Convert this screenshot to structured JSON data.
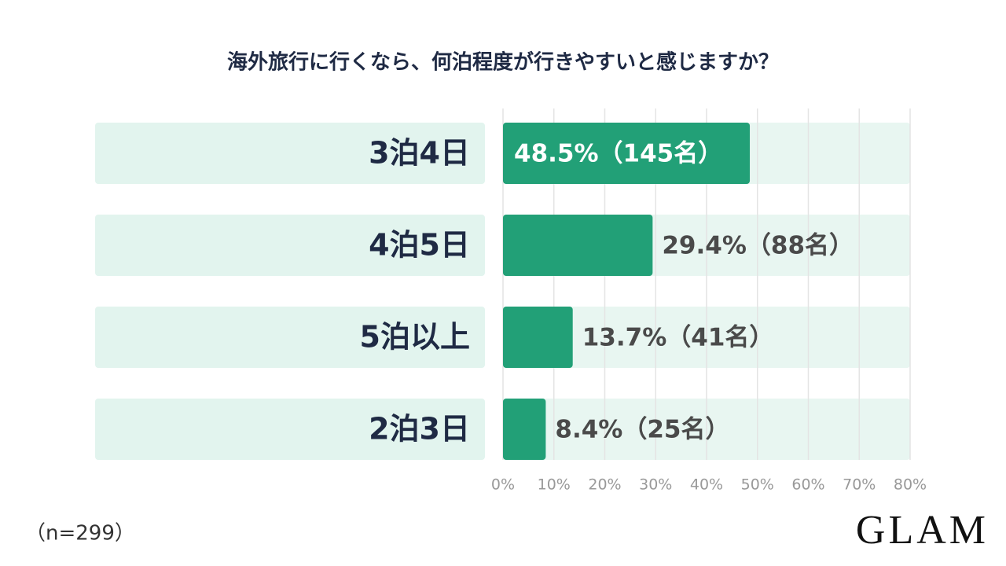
{
  "chart_data": {
    "type": "bar",
    "orientation": "horizontal",
    "title": "海外旅行に行くなら、何泊程度が行きやすいと感じますか？",
    "categories": [
      "3泊4日",
      "4泊5日",
      "5泊以上",
      "2泊3日"
    ],
    "values": [
      48.5,
      29.4,
      13.7,
      8.4
    ],
    "value_labels": [
      "48.5%（145名）",
      "29.4%（88名）",
      "13.7%（41名）",
      "8.4%（25名）"
    ],
    "color": "#22a077",
    "xlim": [
      0,
      80
    ],
    "xticks": [
      {
        "value": 0,
        "label": "0%"
      },
      {
        "value": 10,
        "label": "10%"
      },
      {
        "value": 20,
        "label": "20%"
      },
      {
        "value": 30,
        "label": "30%"
      },
      {
        "value": 40,
        "label": "40%"
      },
      {
        "value": 50,
        "label": "50%"
      },
      {
        "value": 60,
        "label": "60%"
      },
      {
        "value": 70,
        "label": "70%"
      },
      {
        "value": 80,
        "label": "80%"
      }
    ],
    "grid": true,
    "note": "（n=299）",
    "brand": "GLAM"
  }
}
